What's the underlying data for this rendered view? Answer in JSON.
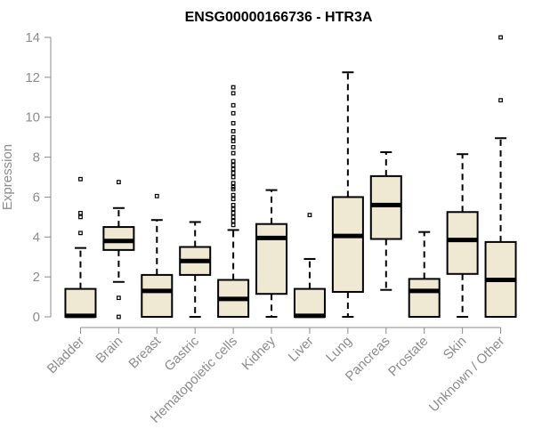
{
  "chart_data": {
    "type": "boxplot",
    "title": "ENSG00000166736 - HTR3A",
    "xlabel": "",
    "ylabel": "Expression",
    "ylim": [
      0,
      14
    ],
    "yticks": [
      0,
      2,
      4,
      6,
      8,
      10,
      12,
      14
    ],
    "grid": false,
    "legend": "none",
    "box_fill": "#efe8d2",
    "categories": [
      "Bladder",
      "Brain",
      "Breast",
      "Gastric",
      "Hematopoietic cells",
      "Kidney",
      "Liver",
      "Lung",
      "Pancreas",
      "Prostate",
      "Skin",
      "Unknown / Other"
    ],
    "boxes": [
      {
        "label": "Bladder",
        "whisker_low": 0,
        "q1": 0,
        "median": 0.05,
        "q3": 1.4,
        "whisker_high": 3.45,
        "outliers": [
          4.2,
          5.0,
          5.2,
          6.9
        ]
      },
      {
        "label": "Brain",
        "whisker_low": 1.75,
        "q1": 3.35,
        "median": 3.8,
        "q3": 4.5,
        "whisker_high": 5.45,
        "outliers": [
          0.0,
          0.95,
          6.75
        ]
      },
      {
        "label": "Breast",
        "whisker_low": 0,
        "q1": 0,
        "median": 1.3,
        "q3": 2.1,
        "whisker_high": 4.85,
        "outliers": [
          6.05
        ]
      },
      {
        "label": "Gastric",
        "whisker_low": 0,
        "q1": 2.1,
        "median": 2.8,
        "q3": 3.5,
        "whisker_high": 4.75,
        "outliers": []
      },
      {
        "label": "Hematopoietic cells",
        "whisker_low": 0,
        "q1": 0,
        "median": 0.9,
        "q3": 1.85,
        "whisker_high": 4.35,
        "outliers": [
          4.6,
          4.8,
          5.0,
          5.2,
          5.4,
          5.6,
          5.9,
          6.1,
          6.4,
          6.5,
          6.7,
          7.0,
          7.2,
          7.4,
          7.6,
          7.8,
          8.2,
          8.5,
          8.8,
          9.0,
          9.3,
          9.7,
          10.2,
          10.6,
          11.2,
          11.5
        ]
      },
      {
        "label": "Kidney",
        "whisker_low": 0,
        "q1": 1.15,
        "median": 3.95,
        "q3": 4.65,
        "whisker_high": 6.35,
        "outliers": []
      },
      {
        "label": "Liver",
        "whisker_low": 0,
        "q1": 0,
        "median": 0.05,
        "q3": 1.4,
        "whisker_high": 2.9,
        "outliers": [
          5.1
        ]
      },
      {
        "label": "Lung",
        "whisker_low": 0,
        "q1": 1.25,
        "median": 4.05,
        "q3": 6.0,
        "whisker_high": 12.25,
        "outliers": []
      },
      {
        "label": "Pancreas",
        "whisker_low": 1.35,
        "q1": 3.9,
        "median": 5.6,
        "q3": 7.05,
        "whisker_high": 8.25,
        "outliers": []
      },
      {
        "label": "Prostate",
        "whisker_low": 0,
        "q1": 0,
        "median": 1.3,
        "q3": 1.9,
        "whisker_high": 4.25,
        "outliers": []
      },
      {
        "label": "Skin",
        "whisker_low": 0,
        "q1": 2.15,
        "median": 3.85,
        "q3": 5.25,
        "whisker_high": 8.15,
        "outliers": []
      },
      {
        "label": "Unknown / Other",
        "whisker_low": 0,
        "q1": 0,
        "median": 1.85,
        "q3": 3.75,
        "whisker_high": 8.95,
        "outliers": [
          10.85,
          14.0
        ]
      }
    ]
  }
}
